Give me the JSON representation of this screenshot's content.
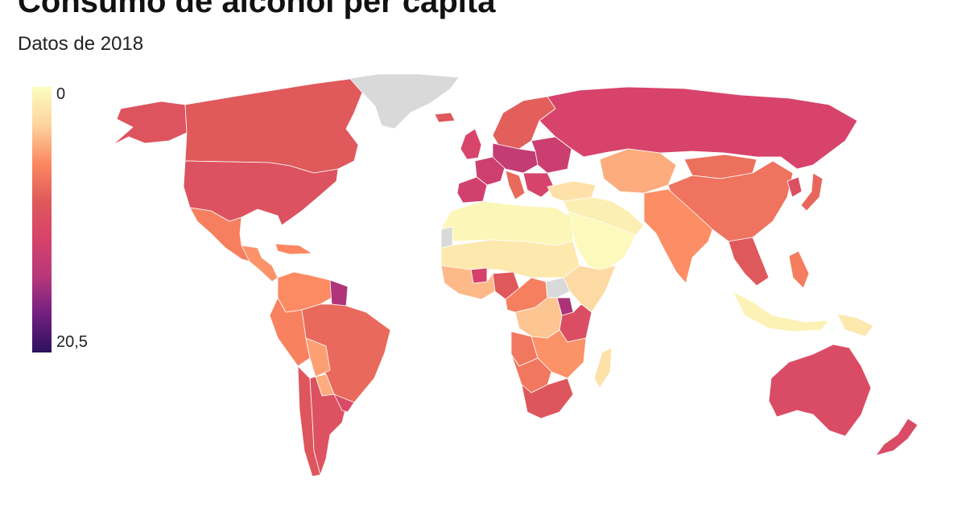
{
  "title": "Consumo de alcohol per cápita",
  "subtitle": "Datos de 2018",
  "legend": {
    "min_label": "0",
    "max_label": "20,5",
    "min_value": 0,
    "max_value": 20.5,
    "color_scale": [
      "#fcfdbf",
      "#fdd49e",
      "#fc8961",
      "#e05a5a",
      "#d7436b",
      "#b73779",
      "#721f81",
      "#2c115f"
    ]
  },
  "no_data_color": "#d9d9d9",
  "regions": [
    {
      "name": "greenland",
      "value": null
    },
    {
      "name": "alaska",
      "value": 9.5
    },
    {
      "name": "canada",
      "value": 8.9
    },
    {
      "name": "usa",
      "value": 9.8
    },
    {
      "name": "mexico",
      "value": 6.5
    },
    {
      "name": "central-america",
      "value": 5.5
    },
    {
      "name": "caribbean",
      "value": 6.0
    },
    {
      "name": "colombia-venezuela",
      "value": 5.8
    },
    {
      "name": "guiana",
      "value": 15.0
    },
    {
      "name": "peru-ecuador",
      "value": 6.3
    },
    {
      "name": "brazil",
      "value": 7.8
    },
    {
      "name": "bolivia",
      "value": 5.0
    },
    {
      "name": "paraguay",
      "value": 4.5
    },
    {
      "name": "chile",
      "value": 9.3
    },
    {
      "name": "argentina",
      "value": 9.8
    },
    {
      "name": "uruguay",
      "value": 10.8
    },
    {
      "name": "iceland",
      "value": 9.1
    },
    {
      "name": "uk-ireland",
      "value": 11.5
    },
    {
      "name": "scandinavia",
      "value": 8.5
    },
    {
      "name": "france",
      "value": 12.6
    },
    {
      "name": "iberia",
      "value": 12.2
    },
    {
      "name": "central-europe",
      "value": 13.5
    },
    {
      "name": "eastern-europe",
      "value": 12.8
    },
    {
      "name": "balkans",
      "value": 11.8
    },
    {
      "name": "italy",
      "value": 7.8
    },
    {
      "name": "russia",
      "value": 11.7
    },
    {
      "name": "turkey",
      "value": 2.0
    },
    {
      "name": "middle-east",
      "value": 1.0
    },
    {
      "name": "arabia",
      "value": 0.3
    },
    {
      "name": "central-asia",
      "value": 4.5
    },
    {
      "name": "mongolia",
      "value": 7.4
    },
    {
      "name": "china",
      "value": 7.2
    },
    {
      "name": "korea",
      "value": 10.2
    },
    {
      "name": "japan",
      "value": 8.0
    },
    {
      "name": "south-asia",
      "value": 5.7
    },
    {
      "name": "indochina",
      "value": 9.0
    },
    {
      "name": "philippines",
      "value": 6.6
    },
    {
      "name": "indonesia",
      "value": 0.8
    },
    {
      "name": "papua",
      "value": 1.5
    },
    {
      "name": "australia",
      "value": 10.6
    },
    {
      "name": "new-zealand",
      "value": 10.7
    },
    {
      "name": "north-africa",
      "value": 0.5
    },
    {
      "name": "sahel",
      "value": 1.5
    },
    {
      "name": "west-africa",
      "value": 4.0
    },
    {
      "name": "burkina-faso",
      "value": 12.0
    },
    {
      "name": "nigeria",
      "value": 9.0
    },
    {
      "name": "central-africa",
      "value": 6.5
    },
    {
      "name": "south-sudan",
      "value": null
    },
    {
      "name": "horn-of-africa",
      "value": 2.5
    },
    {
      "name": "uganda",
      "value": 15.1
    },
    {
      "name": "tanzania",
      "value": 10.4
    },
    {
      "name": "drc",
      "value": 3.5
    },
    {
      "name": "angola",
      "value": 7.0
    },
    {
      "name": "zambia",
      "value": 5.5
    },
    {
      "name": "namibia",
      "value": 7.0
    },
    {
      "name": "south-africa",
      "value": 9.3
    },
    {
      "name": "madagascar",
      "value": 2.0
    },
    {
      "name": "western-sahara",
      "value": null
    }
  ]
}
